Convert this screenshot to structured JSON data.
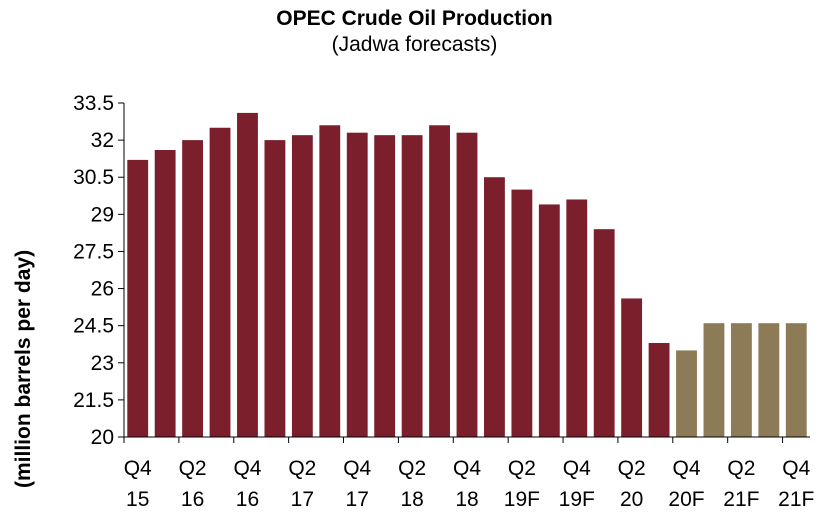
{
  "chart_data": {
    "type": "bar",
    "title": "OPEC Crude Oil Production",
    "subtitle": "(Jadwa forecasts)",
    "xlabel": "",
    "ylabel": "(million barrels per day)",
    "ylim": [
      20,
      33.5
    ],
    "yticks": [
      "20",
      "21.5",
      "23",
      "24.5",
      "26",
      "27.5",
      "29",
      "30.5",
      "32",
      "33.5"
    ],
    "xtick_labels": [
      {
        "top": "Q4",
        "bottom": "15"
      },
      {
        "top": "Q2",
        "bottom": "16"
      },
      {
        "top": "Q4",
        "bottom": "16"
      },
      {
        "top": "Q2",
        "bottom": "17"
      },
      {
        "top": "Q4",
        "bottom": "17"
      },
      {
        "top": "Q2",
        "bottom": "18"
      },
      {
        "top": "Q4",
        "bottom": "18"
      },
      {
        "top": "Q2",
        "bottom": "19F"
      },
      {
        "top": "Q4",
        "bottom": "19F"
      },
      {
        "top": "Q2",
        "bottom": "20"
      },
      {
        "top": "Q4",
        "bottom": "20F"
      },
      {
        "top": "Q2",
        "bottom": "21F"
      },
      {
        "top": "Q4",
        "bottom": "21F"
      }
    ],
    "values": [
      31.2,
      31.6,
      32.0,
      32.5,
      33.1,
      32.0,
      32.2,
      32.6,
      32.3,
      32.2,
      32.2,
      32.6,
      32.3,
      30.5,
      30.0,
      29.4,
      29.6,
      28.4,
      25.6,
      23.8,
      23.5,
      24.6,
      24.6,
      24.6,
      24.6
    ],
    "forecast_start_index": 20,
    "colors": {
      "actual": "#7b1f2c",
      "forecast": "#8d7a57",
      "axis": "#000000"
    },
    "grid": false,
    "legend": "none"
  }
}
